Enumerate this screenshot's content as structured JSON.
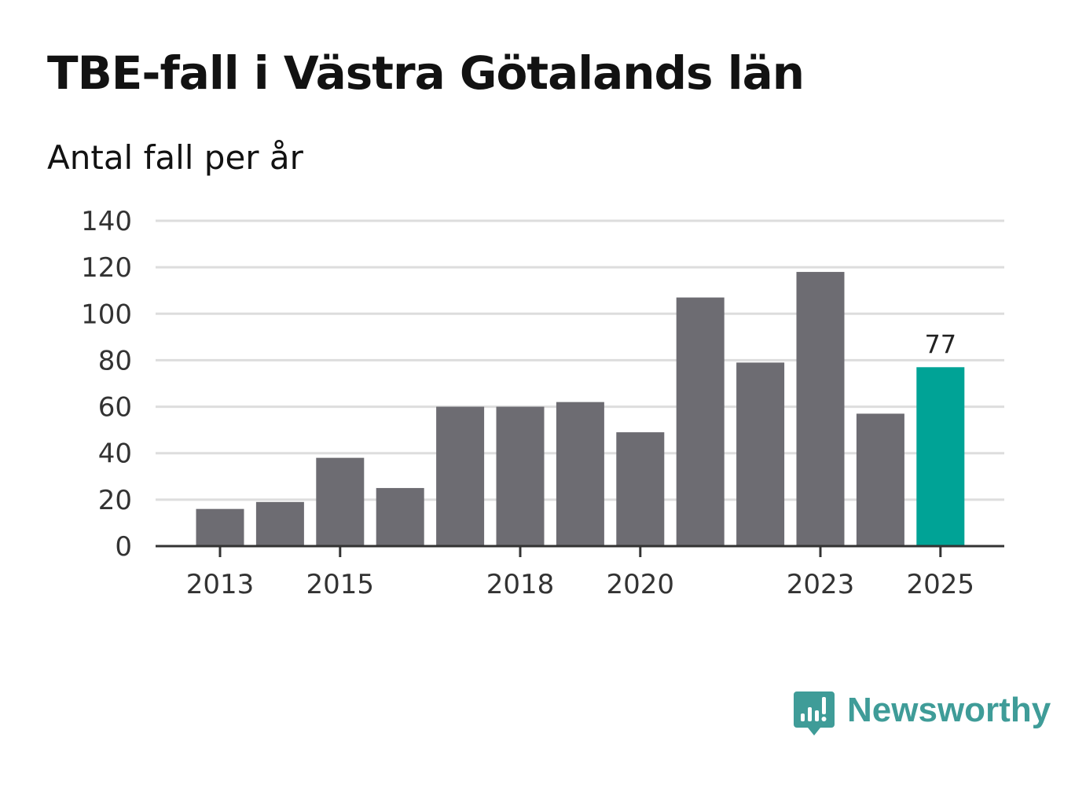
{
  "title": "TBE-fall i Västra Götalands län",
  "subtitle": "Antal fall per år",
  "brand": {
    "name": "Newsworthy",
    "color": "#3f9c98",
    "icon": "bar-chart-speech-bubble-icon"
  },
  "colors": {
    "bar": "#6d6c72",
    "highlight": "#00a396",
    "grid": "#dddddd",
    "axis": "#333333"
  },
  "chart_data": {
    "type": "bar",
    "title": "TBE-fall i Västra Götalands län",
    "subtitle": "Antal fall per år",
    "xlabel": "",
    "ylabel": "",
    "categories": [
      "2013",
      "2014",
      "2015",
      "2016",
      "2017",
      "2018",
      "2019",
      "2020",
      "2021",
      "2022",
      "2023",
      "2024",
      "2025"
    ],
    "values": [
      16,
      19,
      38,
      25,
      60,
      60,
      62,
      49,
      107,
      79,
      118,
      57,
      77
    ],
    "ylim": [
      0,
      140
    ],
    "yticks": [
      0,
      20,
      40,
      60,
      80,
      100,
      120,
      140
    ],
    "xtick_labels": [
      "2013",
      "2015",
      "2018",
      "2020",
      "2023",
      "2025"
    ],
    "highlight_category": "2025",
    "data_labels": [
      {
        "category": "2025",
        "text": "77"
      }
    ],
    "grid": true,
    "legend": "none"
  }
}
